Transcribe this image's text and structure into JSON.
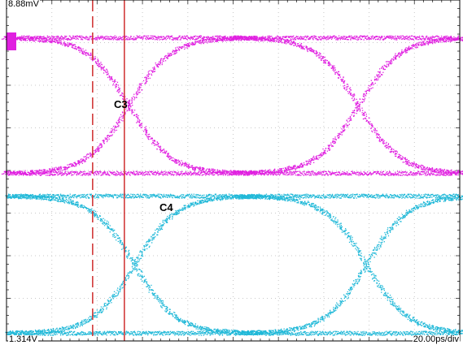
{
  "colors": {
    "background": "#ffffff",
    "grid": "#c8c8c8",
    "frame": "#000000",
    "channel_c3": "#e020e0",
    "channel_c4": "#20b8d8",
    "cursor": "#d23a3a"
  },
  "readouts": {
    "top_left": "8.88mV",
    "bottom_left": "1.314V",
    "bottom_right": "20.00ps/div"
  },
  "chart_data": {
    "type": "line",
    "title": "",
    "xlabel": "",
    "ylabel": "",
    "grid": true,
    "grid_divisions": {
      "x": 10,
      "y": 8
    },
    "timebase": "20.00ps/div",
    "series": [
      {
        "name": "C3",
        "label": "C3",
        "color": "#e020e0",
        "style": "eye-diagram"
      },
      {
        "name": "C4",
        "label": "C4",
        "color": "#20b8d8",
        "style": "eye-diagram"
      }
    ],
    "cursors": [
      {
        "style": "dashed",
        "position_div": 1.9
      },
      {
        "style": "solid",
        "position_div": 2.6
      }
    ]
  }
}
